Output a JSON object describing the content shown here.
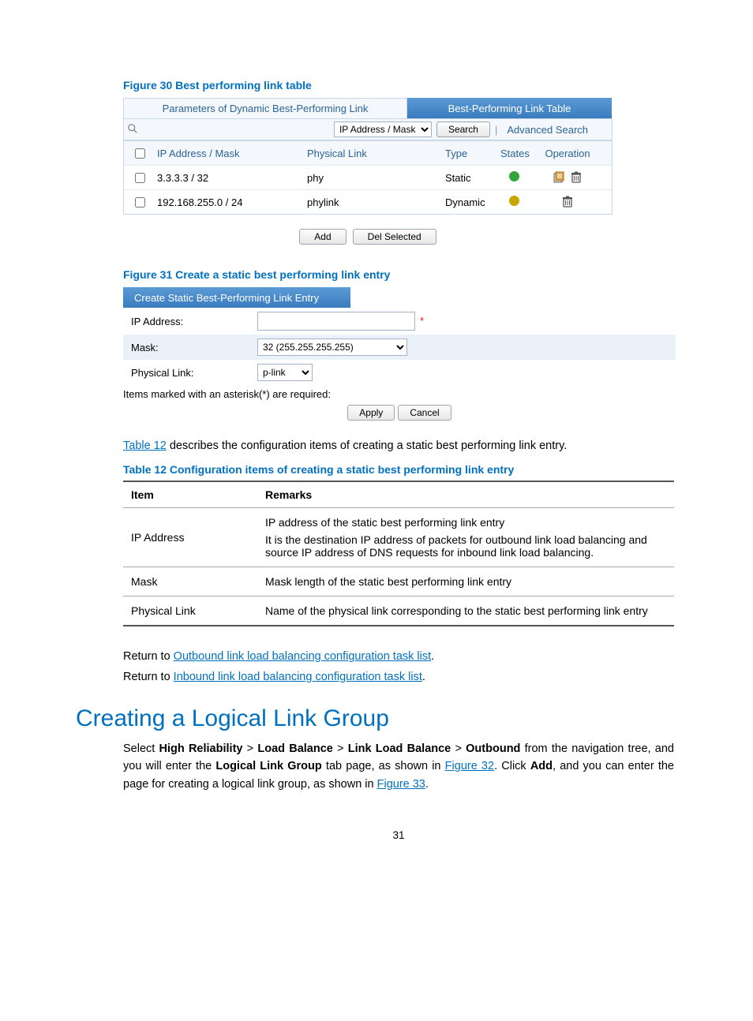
{
  "fig30": {
    "caption": "Figure 30 Best performing link table",
    "tab_inactive": "Parameters of Dynamic Best-Performing Link",
    "tab_active": "Best-Performing Link Table",
    "search_select": "IP Address / Mask",
    "search_btn": "Search",
    "adv_search": "Advanced Search",
    "head": {
      "ip": "IP Address / Mask",
      "link": "Physical Link",
      "type": "Type",
      "state": "States",
      "op": "Operation"
    },
    "rows": [
      {
        "ip": "3.3.3.3 / 32",
        "link": "phy",
        "type": "Static",
        "state_color": "#33a63b",
        "op_edit": true,
        "op_del": true
      },
      {
        "ip": "192.168.255.0 / 24",
        "link": "phylink",
        "type": "Dynamic",
        "state_color": "#caa600",
        "op_edit": false,
        "op_del": true
      }
    ],
    "btn_add": "Add",
    "btn_del": "Del Selected"
  },
  "fig31": {
    "caption": "Figure 31 Create a static best performing link entry",
    "tab": "Create Static Best-Performing Link Entry",
    "rows": {
      "ip_label": "IP Address:",
      "mask_label": "Mask:",
      "mask_value": "32 (255.255.255.255)",
      "plink_label": "Physical Link:",
      "plink_value": "p-link"
    },
    "note": "Items marked with an asterisk(*) are required:",
    "apply": "Apply",
    "cancel": "Cancel"
  },
  "body1_a": "Table 12",
  "body1_b": " describes the configuration items of creating a static best performing link entry.",
  "tbl12": {
    "caption": "Table 12 Configuration items of creating a static best performing link entry",
    "head_item": "Item",
    "head_rem": "Remarks",
    "rows": [
      {
        "item": "IP Address",
        "rem": "IP address of the static best performing link entry\nIt is the destination IP address of packets for outbound link load balancing and source IP address of DNS requests for inbound link load balancing."
      },
      {
        "item": "Mask",
        "rem": "Mask length of the static best performing link entry"
      },
      {
        "item": "Physical Link",
        "rem": "Name of the physical link corresponding to the static best performing link entry"
      }
    ]
  },
  "ret1_a": "Return to ",
  "ret1_link": "Outbound link load balancing configuration task list",
  "ret2_a": "Return to ",
  "ret2_link": "Inbound link load balancing configuration task list",
  "h2": "Creating a Logical Link Group",
  "para_parts": {
    "p1": "Select ",
    "b1": "High Reliability",
    "gt": " > ",
    "b2": "Load Balance",
    "b3": "Link Load Balance",
    "b4": "Outbound",
    "p2": " from the navigation tree, and you will enter the ",
    "b5": "Logical Link Group",
    "p3": " tab page, as shown in ",
    "l1": "Figure 32",
    "p4": ". Click ",
    "b6": "Add",
    "p5": ", and you can enter the page for creating a logical link group, as shown in ",
    "l2": "Figure 33",
    "p6": "."
  },
  "pagenum": "31"
}
